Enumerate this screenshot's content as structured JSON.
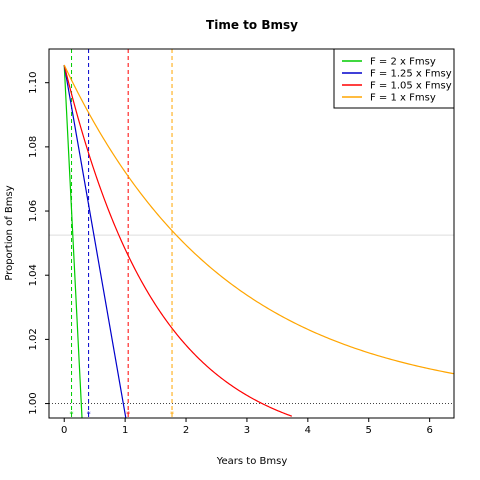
{
  "chart_data": {
    "type": "line",
    "title": "Time to Bmsy",
    "xlabel": "Years to Bmsy",
    "ylabel": "Proportion of Bmsy",
    "xlim": [
      -0.25,
      6.4
    ],
    "ylim": [
      0.9955,
      1.1105
    ],
    "xticks": [
      0,
      1,
      2,
      3,
      4,
      5,
      6
    ],
    "yticks": [
      1.0,
      1.02,
      1.04,
      1.06,
      1.08,
      1.1
    ],
    "ytick_labels": [
      "1.00",
      "1.02",
      "1.04",
      "1.06",
      "1.08",
      "1.10"
    ],
    "grid": false,
    "legend_position": "top-right",
    "start_value": 1.1055,
    "reference_line_y": 1.0,
    "series": [
      {
        "name": "F = 2 x Fmsy",
        "color": "#00cc00",
        "x_at_bmsy": 0.28,
        "marker_x": 0.12
      },
      {
        "name": "F = 1.25 x Fmsy",
        "color": "#0000cc",
        "x_at_bmsy": 0.97,
        "marker_x": 0.4
      },
      {
        "name": "F = 1.05 x Fmsy",
        "color": "#ff0000",
        "x_at_bmsy": 3.25,
        "marker_x": 1.05
      },
      {
        "name": "F = 1 x Fmsy",
        "color": "#ffa500",
        "x_at_bmsy": null,
        "end_value": 1.0093,
        "marker_x": 1.77
      }
    ],
    "faint_hline_y": 1.0525
  }
}
